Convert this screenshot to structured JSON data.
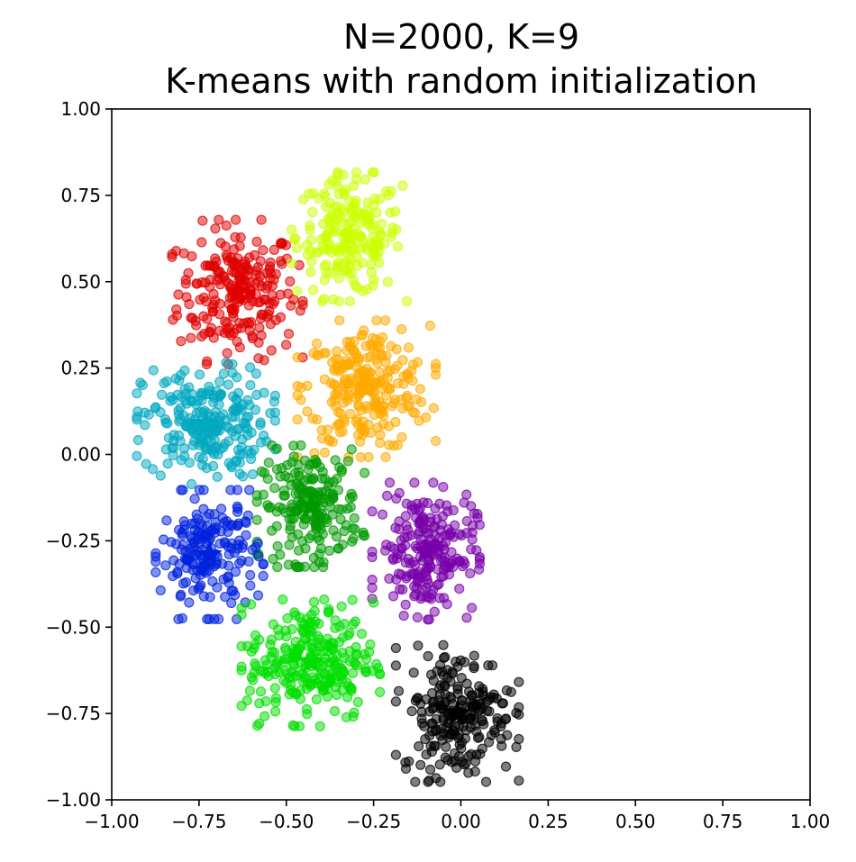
{
  "chart_data": {
    "type": "scatter",
    "title": "N=2000, K=9",
    "subtitle": "K-means with random initialization",
    "xlabel": "",
    "ylabel": "",
    "xlim": [
      -1.0,
      1.0
    ],
    "ylim": [
      -1.0,
      1.0
    ],
    "x_ticks": [
      "−1.00",
      "−0.75",
      "−0.50",
      "−0.25",
      "0.00",
      "0.25",
      "0.50",
      "0.75",
      "1.00"
    ],
    "y_ticks": [
      "1.00",
      "0.75",
      "0.50",
      "0.25",
      "0.00",
      "−0.25",
      "−0.50",
      "−0.75",
      "−1.00"
    ],
    "x_tick_values": [
      -1.0,
      -0.75,
      -0.5,
      -0.25,
      0.0,
      0.25,
      0.5,
      0.75,
      1.0
    ],
    "y_tick_values": [
      1.0,
      0.75,
      0.5,
      0.25,
      0.0,
      -0.25,
      -0.5,
      -0.75,
      -1.0
    ],
    "grid": false,
    "legend": "none",
    "point_count": 2000,
    "clusters": [
      {
        "color": "#e00000",
        "centroid": [
          -0.64,
          0.47
        ],
        "spread": [
          0.085,
          0.095
        ],
        "count": 230
      },
      {
        "color": "#ccff00",
        "centroid": [
          -0.32,
          0.63
        ],
        "spread": [
          0.075,
          0.085
        ],
        "count": 200
      },
      {
        "color": "#ffaa00",
        "centroid": [
          -0.27,
          0.19
        ],
        "spread": [
          0.09,
          0.09
        ],
        "count": 250
      },
      {
        "color": "#00a8c0",
        "centroid": [
          -0.73,
          0.09
        ],
        "spread": [
          0.09,
          0.08
        ],
        "count": 230
      },
      {
        "color": "#009900",
        "centroid": [
          -0.43,
          -0.15
        ],
        "spread": [
          0.07,
          0.08
        ],
        "count": 200
      },
      {
        "color": "#0022dd",
        "centroid": [
          -0.72,
          -0.29
        ],
        "spread": [
          0.07,
          0.085
        ],
        "count": 190
      },
      {
        "color": "#7700aa",
        "centroid": [
          -0.1,
          -0.28
        ],
        "spread": [
          0.07,
          0.09
        ],
        "count": 220
      },
      {
        "color": "#00dd00",
        "centroid": [
          -0.43,
          -0.6
        ],
        "spread": [
          0.09,
          0.085
        ],
        "count": 260
      },
      {
        "color": "#000000",
        "centroid": [
          -0.01,
          -0.75
        ],
        "spread": [
          0.08,
          0.09
        ],
        "count": 220
      }
    ]
  }
}
